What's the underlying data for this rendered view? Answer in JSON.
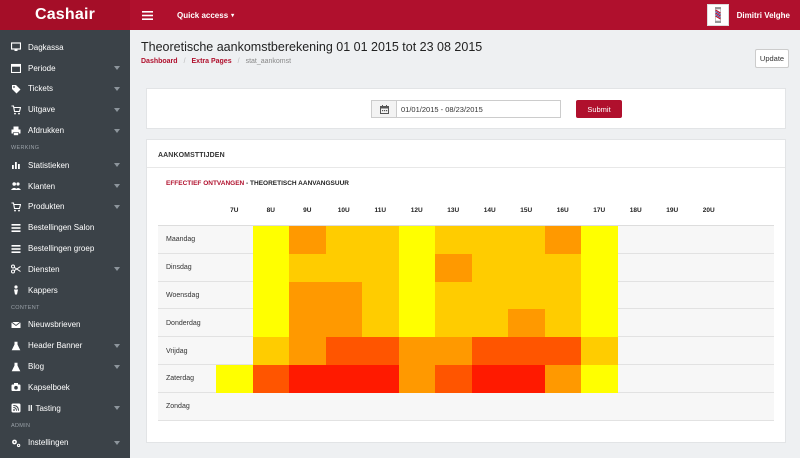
{
  "topbar": {
    "brand": "Cashair",
    "quick_access": "Quick access",
    "user_name": "Dimitri Velghe"
  },
  "sidebar": {
    "items": [
      {
        "label": "Dagkassa",
        "icon": "desktop-icon",
        "arrow": false
      },
      {
        "label": "Periode",
        "icon": "calendar-icon",
        "arrow": true
      },
      {
        "label": "Tickets",
        "icon": "tag-icon",
        "arrow": true
      },
      {
        "label": "Uitgave",
        "icon": "cart-icon",
        "arrow": true
      },
      {
        "label": "Afdrukken",
        "icon": "print-icon",
        "arrow": true
      },
      {
        "header": "WERKING"
      },
      {
        "label": "Statistieken",
        "icon": "bar-chart-icon",
        "arrow": true
      },
      {
        "label": "Klanten",
        "icon": "users-icon",
        "arrow": true
      },
      {
        "label": "Produkten",
        "icon": "cart-icon",
        "arrow": true
      },
      {
        "label": "Bestellingen Salon",
        "icon": "list-icon",
        "arrow": false
      },
      {
        "label": "Bestellingen groep",
        "icon": "list-icon",
        "arrow": false
      },
      {
        "label": "Diensten",
        "icon": "scissors-icon",
        "arrow": true
      },
      {
        "label": "Kappers",
        "icon": "person-icon",
        "arrow": false
      },
      {
        "header": "CONTENT"
      },
      {
        "label": "Nieuwsbrieven",
        "icon": "envelope-icon",
        "arrow": false
      },
      {
        "label": "Header Banner",
        "icon": "flask-icon",
        "arrow": true
      },
      {
        "label": "Blog",
        "icon": "flask-icon",
        "arrow": true
      },
      {
        "label": "Kapselboek",
        "icon": "camera-icon",
        "arrow": false
      },
      {
        "label": "Tasting",
        "icon": "rss-icon",
        "arrow": true,
        "prefix": "II"
      },
      {
        "header": "ADMIN"
      },
      {
        "label": "Instellingen",
        "icon": "gears-icon",
        "arrow": true
      }
    ]
  },
  "page": {
    "title": "Theoretische aankomstberekening 01 01 2015 tot 23 08 2015",
    "breadcrumb": {
      "home": "Dashboard",
      "section": "Extra Pages",
      "current": "stat_aankomst"
    },
    "update_label": "Update"
  },
  "filter": {
    "date_range": "01/01/2015 - 08/23/2015",
    "submit_label": "Submit"
  },
  "chart_panel": {
    "title": "AANKOMSTTIJDEN",
    "legend_actual": "EFFECTIEF ONTVANGEN",
    "legend_separator": " - ",
    "legend_theoretical": "THEORETISCH AANVANGSUUR"
  },
  "chart_data": {
    "type": "heatmap",
    "x": [
      "7U",
      "8U",
      "9U",
      "10U",
      "11U",
      "12U",
      "13U",
      "14U",
      "15U",
      "16U",
      "17U",
      "18U",
      "19U",
      "20U"
    ],
    "y": [
      "Maandag",
      "Dinsdag",
      "Woensdag",
      "Donderdag",
      "Vrijdag",
      "Zaterdag",
      "Zondag"
    ],
    "palette": [
      "#ffff00",
      "#ffcc00",
      "#ff9900",
      "#ff5500",
      "#ff1a00"
    ],
    "values": [
      [
        null,
        1,
        3,
        2,
        2,
        1,
        2,
        2,
        2,
        3,
        1,
        null,
        null,
        null
      ],
      [
        null,
        1,
        2,
        2,
        2,
        1,
        3,
        2,
        2,
        2,
        1,
        null,
        null,
        null
      ],
      [
        null,
        1,
        3,
        3,
        2,
        1,
        2,
        2,
        2,
        2,
        1,
        null,
        null,
        null
      ],
      [
        null,
        1,
        3,
        3,
        2,
        1,
        2,
        2,
        3,
        2,
        1,
        null,
        null,
        null
      ],
      [
        null,
        2,
        3,
        4,
        4,
        3,
        3,
        4,
        4,
        4,
        2,
        null,
        null,
        null
      ],
      [
        1,
        4,
        5,
        5,
        5,
        3,
        4,
        5,
        5,
        3,
        1,
        null,
        null,
        null
      ],
      [
        null,
        null,
        null,
        null,
        null,
        null,
        null,
        null,
        null,
        null,
        null,
        null,
        null,
        null
      ]
    ]
  }
}
